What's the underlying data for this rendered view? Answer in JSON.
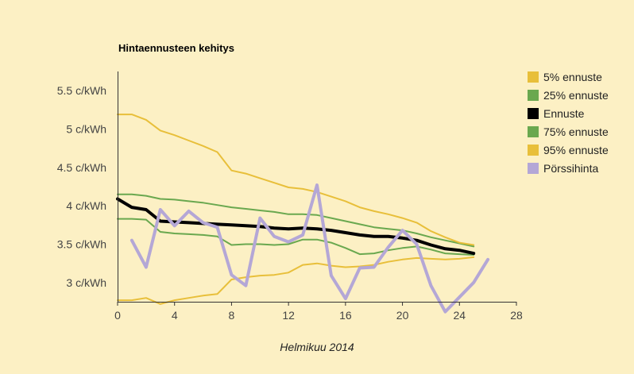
{
  "chart_data": {
    "type": "line",
    "title": "Hintaennusteen kehitys",
    "xlabel": "Helmikuu 2014",
    "ylabel": "",
    "xlim": [
      0,
      28
    ],
    "ylim": [
      2.75,
      5.75
    ],
    "x_ticks": [
      0,
      4,
      8,
      12,
      16,
      20,
      24,
      28
    ],
    "x_tick_labels": [
      "0",
      "4",
      "8",
      "12",
      "16",
      "20",
      "24",
      "28"
    ],
    "y_ticks": [
      3.0,
      3.5,
      4.0,
      4.5,
      5.0,
      5.5
    ],
    "y_tick_labels": [
      "3 c/kWh",
      "3.5 c/kWh",
      "4 c/kWh",
      "4.5 c/kWh",
      "5 c/kWh",
      "5.5 c/kWh"
    ],
    "grid": false,
    "legend_position": "right",
    "series": [
      {
        "name": "5% ennuste",
        "color": "#e8bf3a",
        "width": 2,
        "x": [
          0,
          1,
          2,
          3,
          4,
          5,
          6,
          7,
          8,
          9,
          10,
          11,
          12,
          13,
          14,
          15,
          16,
          17,
          18,
          19,
          20,
          21,
          22,
          23,
          24,
          25
        ],
        "y": [
          2.77,
          2.77,
          2.8,
          2.72,
          2.77,
          2.8,
          2.83,
          2.85,
          3.04,
          3.07,
          3.09,
          3.1,
          3.13,
          3.23,
          3.25,
          3.22,
          3.2,
          3.21,
          3.23,
          3.27,
          3.3,
          3.32,
          3.31,
          3.3,
          3.31,
          3.33
        ]
      },
      {
        "name": "25% ennuste",
        "color": "#6aa84f",
        "width": 2,
        "x": [
          0,
          1,
          2,
          3,
          4,
          5,
          6,
          7,
          8,
          9,
          10,
          11,
          12,
          13,
          14,
          15,
          16,
          17,
          18,
          19,
          20,
          21,
          22,
          23,
          24,
          25
        ],
        "y": [
          3.83,
          3.83,
          3.82,
          3.66,
          3.64,
          3.63,
          3.62,
          3.6,
          3.49,
          3.5,
          3.5,
          3.49,
          3.5,
          3.56,
          3.56,
          3.52,
          3.45,
          3.37,
          3.38,
          3.42,
          3.45,
          3.47,
          3.43,
          3.38,
          3.37,
          3.36
        ]
      },
      {
        "name": "Ennuste",
        "color": "#000000",
        "width": 4,
        "x": [
          0,
          1,
          2,
          3,
          4,
          5,
          6,
          7,
          8,
          9,
          10,
          11,
          12,
          13,
          14,
          15,
          16,
          17,
          18,
          19,
          20,
          21,
          22,
          23,
          24,
          25
        ],
        "y": [
          4.09,
          3.98,
          3.95,
          3.8,
          3.79,
          3.78,
          3.77,
          3.76,
          3.75,
          3.74,
          3.73,
          3.71,
          3.7,
          3.71,
          3.7,
          3.68,
          3.65,
          3.62,
          3.6,
          3.6,
          3.58,
          3.55,
          3.49,
          3.44,
          3.42,
          3.38
        ]
      },
      {
        "name": "75% ennuste",
        "color": "#6aa84f",
        "width": 2,
        "x": [
          0,
          1,
          2,
          3,
          4,
          5,
          6,
          7,
          8,
          9,
          10,
          11,
          12,
          13,
          14,
          15,
          16,
          17,
          18,
          19,
          20,
          21,
          22,
          23,
          24,
          25
        ],
        "y": [
          4.15,
          4.15,
          4.13,
          4.09,
          4.08,
          4.06,
          4.04,
          4.01,
          3.98,
          3.96,
          3.94,
          3.92,
          3.89,
          3.89,
          3.88,
          3.84,
          3.8,
          3.76,
          3.72,
          3.7,
          3.68,
          3.64,
          3.59,
          3.55,
          3.51,
          3.47
        ]
      },
      {
        "name": "95% ennuste",
        "color": "#e8bf3a",
        "width": 2,
        "x": [
          0,
          1,
          2,
          3,
          4,
          5,
          6,
          7,
          8,
          9,
          10,
          11,
          12,
          13,
          14,
          15,
          16,
          17,
          18,
          19,
          20,
          21,
          22,
          23,
          24,
          25
        ],
        "y": [
          5.19,
          5.19,
          5.12,
          4.98,
          4.92,
          4.85,
          4.78,
          4.7,
          4.46,
          4.42,
          4.36,
          4.3,
          4.24,
          4.22,
          4.18,
          4.12,
          4.06,
          3.98,
          3.93,
          3.89,
          3.84,
          3.78,
          3.67,
          3.59,
          3.52,
          3.49
        ]
      },
      {
        "name": "Pörssihinta",
        "color": "#b4a7d6",
        "width": 4,
        "x": [
          1,
          2,
          3,
          4,
          5,
          6,
          7,
          8,
          9,
          10,
          11,
          12,
          13,
          14,
          15,
          16,
          17,
          18,
          19,
          20,
          21,
          22,
          23,
          24,
          25,
          26
        ],
        "y": [
          3.55,
          3.2,
          3.95,
          3.74,
          3.93,
          3.78,
          3.72,
          3.1,
          2.96,
          3.84,
          3.6,
          3.53,
          3.62,
          4.27,
          3.09,
          2.79,
          3.19,
          3.2,
          3.46,
          3.68,
          3.5,
          2.96,
          2.62,
          2.81,
          3.0,
          3.3
        ]
      }
    ]
  }
}
